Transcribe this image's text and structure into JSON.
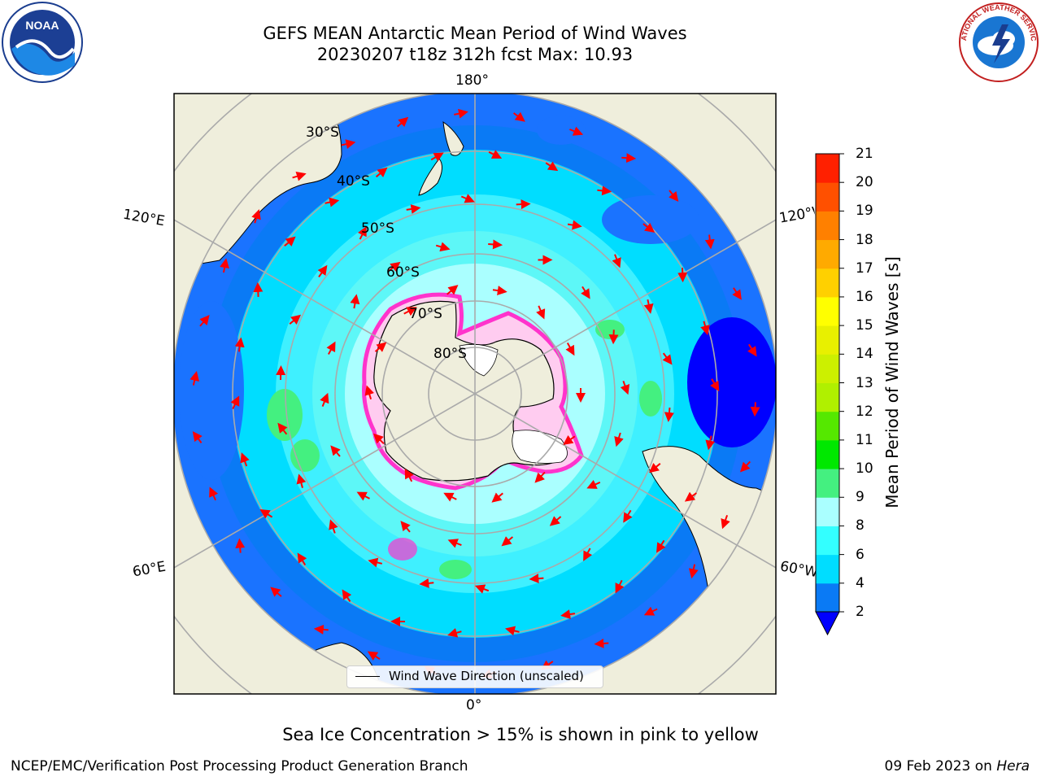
{
  "title_line1": "GEFS MEAN Antarctic Mean Period of Wind Waves",
  "title_line2": "20230207 t18z 312h fcst   Max: 10.93",
  "latitude_labels": [
    "30°S",
    "40°S",
    "50°S",
    "60°S",
    "70°S",
    "80°S"
  ],
  "longitude_labels": {
    "top": "180°",
    "bottom": "0°",
    "left_upper": "120°E",
    "left_lower": "60°E",
    "right_upper": "120°W",
    "right_lower": "60°W"
  },
  "legend": {
    "label": "Wind Wave Direction (unscaled)"
  },
  "colorbar": {
    "label": "Mean Period of Wind Waves [s]",
    "ticks": [
      "2",
      "4",
      "6",
      "8",
      "9",
      "10",
      "11",
      "12",
      "13",
      "14",
      "15",
      "16",
      "17",
      "18",
      "19",
      "20",
      "21"
    ],
    "colors": [
      "#0a7af5",
      "#00ddff",
      "#33ffff",
      "#aaffff",
      "#44f080",
      "#00e800",
      "#55e800",
      "#b0f000",
      "#ccf000",
      "#e8f000",
      "#ffff00",
      "#ffd000",
      "#ffaa00",
      "#ff8000",
      "#ff5000",
      "#ff2000"
    ],
    "under_color": "#0000ff"
  },
  "colors": {
    "land": "#efeedc",
    "ocean_deep": "#1a73ff",
    "ocean_mid": "#00ddff",
    "ocean_light": "#5df7f7",
    "ice": "#ff33cc",
    "arrow": "#ff0000"
  },
  "logos": {
    "noaa_text": "NOAA",
    "nws_text": "NATIONAL WEATHER SERVICE"
  },
  "note": "Sea Ice Concentration > 15% is shown in pink to yellow",
  "footer_left": "NCEP/EMC/Verification Post Processing Product Generation Branch",
  "footer_right_date": "09 Feb 2023 on ",
  "footer_right_host": "Hera"
}
